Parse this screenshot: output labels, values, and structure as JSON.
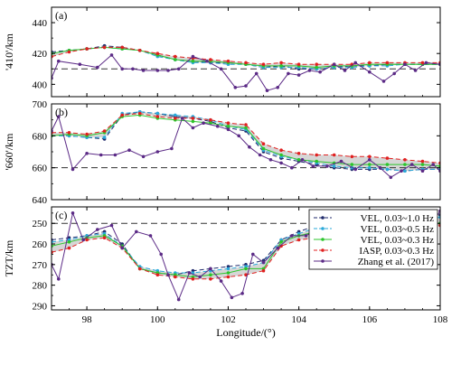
{
  "chart_data": [
    {
      "type": "line",
      "panel_label": "(a)",
      "ylabel": "'410'/km",
      "ylim": [
        450,
        392
      ],
      "yticks": [
        400,
        420,
        440
      ],
      "reference_line": 410,
      "band_between": [
        "IASP, 0.03~0.3 Hz",
        "VEL, 0.03~0.5 Hz"
      ],
      "series": [
        {
          "name": "VEL, 0.03~1.0 Hz",
          "x": [
            97.0,
            97.5,
            98.0,
            98.5,
            99.0,
            99.5,
            100.0,
            100.5,
            101.0,
            101.5,
            102.0,
            102.5,
            103.0,
            103.5,
            104.0,
            104.5,
            105.0,
            105.5,
            106.0,
            106.5,
            107.0,
            107.5,
            108.0
          ],
          "y": [
            421,
            422,
            423,
            425,
            424,
            422,
            419,
            416,
            415,
            414,
            414,
            413,
            411,
            412,
            410,
            410,
            411,
            412,
            412,
            413,
            413,
            413,
            413
          ]
        },
        {
          "name": "VEL, 0.03~0.5 Hz",
          "x": [
            97.0,
            97.5,
            98.0,
            98.5,
            99.0,
            99.5,
            100.0,
            100.5,
            101.0,
            101.5,
            102.0,
            102.5,
            103.0,
            103.5,
            104.0,
            104.5,
            105.0,
            105.5,
            106.0,
            106.5,
            107.0,
            107.5,
            108.0
          ],
          "y": [
            420,
            422,
            423,
            424,
            423,
            422,
            418,
            416,
            414,
            414,
            413,
            413,
            411,
            411,
            411,
            410,
            411,
            411,
            412,
            412,
            413,
            413,
            413
          ]
        },
        {
          "name": "VEL, 0.03~0.3 Hz",
          "x": [
            97.0,
            97.5,
            98.0,
            98.5,
            99.0,
            99.5,
            100.0,
            100.5,
            101.0,
            101.5,
            102.0,
            102.5,
            103.0,
            103.5,
            104.0,
            104.5,
            105.0,
            105.5,
            106.0,
            106.5,
            107.0,
            107.5,
            108.0
          ],
          "y": [
            420,
            422,
            423,
            424,
            423,
            422,
            419,
            416,
            415,
            415,
            414,
            413,
            412,
            412,
            412,
            411,
            412,
            412,
            413,
            413,
            413,
            413,
            413
          ]
        },
        {
          "name": "IASP, 0.03~0.3 Hz",
          "x": [
            97.0,
            97.5,
            98.0,
            98.5,
            99.0,
            99.5,
            100.0,
            100.5,
            101.0,
            101.5,
            102.0,
            102.5,
            103.0,
            103.5,
            104.0,
            104.5,
            105.0,
            105.5,
            106.0,
            106.5,
            107.0,
            107.5,
            108.0
          ],
          "y": [
            418,
            421,
            423,
            424,
            424,
            422,
            420,
            418,
            417,
            416,
            415,
            414,
            413,
            414,
            413,
            413,
            413,
            413,
            414,
            414,
            414,
            414,
            414
          ]
        },
        {
          "name": "Zhang et al. (2017)",
          "x": [
            97.0,
            97.2,
            97.8,
            98.3,
            98.7,
            99.0,
            99.3,
            99.6,
            100.0,
            100.3,
            100.6,
            101.0,
            101.4,
            101.8,
            102.2,
            102.5,
            102.8,
            103.1,
            103.4,
            103.7,
            104.0,
            104.3,
            104.6,
            105.0,
            105.3,
            105.6,
            106.0,
            106.4,
            106.7,
            107.0,
            107.3,
            107.6,
            108.0
          ],
          "y": [
            404,
            415,
            413,
            411,
            419,
            410,
            410,
            409,
            409,
            409,
            410,
            418,
            415,
            410,
            398,
            399,
            407,
            396,
            398,
            407,
            406,
            409,
            408,
            413,
            409,
            414,
            408,
            402,
            407,
            413,
            409,
            414,
            413
          ]
        }
      ]
    },
    {
      "type": "line",
      "panel_label": "(b)",
      "ylabel": "'660'/km",
      "ylim": [
        700,
        640
      ],
      "yticks": [
        640,
        660,
        680,
        700
      ],
      "reference_line": 660,
      "band_between": [
        "IASP, 0.03~0.3 Hz",
        "VEL, 0.03~0.5 Hz"
      ],
      "series": [
        {
          "name": "VEL, 0.03~1.0 Hz",
          "x": [
            97.0,
            97.5,
            98.0,
            98.5,
            99.0,
            99.5,
            100.0,
            100.5,
            101.0,
            101.5,
            102.0,
            102.5,
            103.0,
            103.5,
            104.0,
            104.5,
            105.0,
            105.5,
            106.0,
            106.5,
            107.0,
            107.5,
            108.0
          ],
          "y": [
            680,
            680,
            679,
            678,
            693,
            695,
            694,
            692,
            691,
            689,
            685,
            683,
            670,
            666,
            664,
            662,
            660,
            659,
            659,
            659,
            658,
            659,
            659
          ]
        },
        {
          "name": "VEL, 0.03~0.5 Hz",
          "x": [
            97.0,
            97.5,
            98.0,
            98.5,
            99.0,
            99.5,
            100.0,
            100.5,
            101.0,
            101.5,
            102.0,
            102.5,
            103.0,
            103.5,
            104.0,
            104.5,
            105.0,
            105.5,
            106.0,
            106.5,
            107.0,
            107.5,
            108.0
          ],
          "y": [
            680,
            680,
            679,
            679,
            694,
            695,
            694,
            693,
            692,
            690,
            686,
            684,
            671,
            667,
            665,
            663,
            661,
            660,
            660,
            659,
            658,
            659,
            659
          ]
        },
        {
          "name": "VEL, 0.03~0.3 Hz",
          "x": [
            97.0,
            97.5,
            98.0,
            98.5,
            99.0,
            99.5,
            100.0,
            100.5,
            101.0,
            101.5,
            102.0,
            102.5,
            103.0,
            103.5,
            104.0,
            104.5,
            105.0,
            105.5,
            106.0,
            106.5,
            107.0,
            107.5,
            108.0
          ],
          "y": [
            680,
            681,
            680,
            682,
            692,
            693,
            691,
            690,
            689,
            688,
            686,
            685,
            672,
            668,
            665,
            664,
            663,
            662,
            662,
            662,
            662,
            662,
            661
          ]
        },
        {
          "name": "IASP, 0.03~0.3 Hz",
          "x": [
            97.0,
            97.5,
            98.0,
            98.5,
            99.0,
            99.5,
            100.0,
            100.5,
            101.0,
            101.5,
            102.0,
            102.5,
            103.0,
            103.5,
            104.0,
            104.5,
            105.0,
            105.5,
            106.0,
            106.5,
            107.0,
            107.5,
            108.0
          ],
          "y": [
            682,
            682,
            681,
            683,
            693,
            694,
            692,
            691,
            691,
            690,
            688,
            687,
            675,
            671,
            669,
            668,
            668,
            667,
            667,
            666,
            665,
            664,
            663
          ]
        },
        {
          "name": "Zhang et al. (2017)",
          "x": [
            97.0,
            97.2,
            97.6,
            98.0,
            98.4,
            98.8,
            99.2,
            99.6,
            100.0,
            100.4,
            100.7,
            101.0,
            101.3,
            101.7,
            102.0,
            102.3,
            102.6,
            102.9,
            103.2,
            103.5,
            103.8,
            104.1,
            104.4,
            104.8,
            105.2,
            105.6,
            106.0,
            106.3,
            106.6,
            106.9,
            107.2,
            107.5,
            107.8,
            108.0
          ],
          "y": [
            683,
            692,
            659,
            669,
            668,
            668,
            671,
            667,
            670,
            672,
            691,
            685,
            688,
            686,
            684,
            680,
            673,
            668,
            665,
            663,
            660,
            665,
            661,
            661,
            664,
            659,
            665,
            660,
            654,
            658,
            662,
            658,
            662,
            658
          ]
        }
      ]
    },
    {
      "type": "line",
      "panel_label": "(c)",
      "ylabel": "TZT/km",
      "ylim": [
        242,
        292
      ],
      "yticks": [
        250,
        260,
        270,
        280,
        290
      ],
      "reference_line": 250,
      "band_between": [
        "IASP, 0.03~0.3 Hz",
        "VEL, 0.03~0.5 Hz"
      ],
      "xlabel": "Longitude/(°)",
      "xlim": [
        97,
        108
      ],
      "xticks": [
        98,
        100,
        102,
        104,
        106,
        108
      ],
      "series": [
        {
          "name": "VEL, 0.03~1.0 Hz",
          "x": [
            97.0,
            97.5,
            98.0,
            98.5,
            99.0,
            99.5,
            100.0,
            100.5,
            101.0,
            101.5,
            102.0,
            102.5,
            103.0,
            103.5,
            104.0,
            104.5,
            105.0,
            105.5,
            106.0,
            106.5,
            107.0,
            107.5,
            108.0
          ],
          "y": [
            258,
            257,
            256,
            254,
            260,
            272,
            274,
            275,
            273,
            272,
            271,
            270,
            268,
            258,
            254,
            251,
            250,
            249,
            248,
            248,
            247,
            247,
            246
          ]
        },
        {
          "name": "VEL, 0.03~0.5 Hz",
          "x": [
            97.0,
            97.5,
            98.0,
            98.5,
            99.0,
            99.5,
            100.0,
            100.5,
            101.0,
            101.5,
            102.0,
            102.5,
            103.0,
            103.5,
            104.0,
            104.5,
            105.0,
            105.5,
            106.0,
            106.5,
            107.0,
            107.5,
            108.0
          ],
          "y": [
            259,
            258,
            256,
            255,
            261,
            271,
            273,
            274,
            274,
            273,
            272,
            271,
            269,
            258,
            255,
            252,
            251,
            250,
            249,
            249,
            248,
            248,
            247
          ]
        },
        {
          "name": "VEL, 0.03~0.3 Hz",
          "x": [
            97.0,
            97.5,
            98.0,
            98.5,
            99.0,
            99.5,
            100.0,
            100.5,
            101.0,
            101.5,
            102.0,
            102.5,
            103.0,
            103.5,
            104.0,
            104.5,
            105.0,
            105.5,
            106.0,
            106.5,
            107.0,
            107.5,
            108.0
          ],
          "y": [
            261,
            259,
            257,
            256,
            261,
            272,
            274,
            275,
            276,
            275,
            274,
            272,
            272,
            259,
            256,
            254,
            253,
            252,
            251,
            251,
            250,
            250,
            250
          ]
        },
        {
          "name": "IASP, 0.03~0.3 Hz",
          "x": [
            97.0,
            97.5,
            98.0,
            98.5,
            99.0,
            99.5,
            100.0,
            100.5,
            101.0,
            101.5,
            102.0,
            102.5,
            103.0,
            103.5,
            104.0,
            104.5,
            105.0,
            105.5,
            106.0,
            106.5,
            107.0,
            107.5,
            108.0
          ],
          "y": [
            264,
            262,
            258,
            257,
            262,
            272,
            275,
            276,
            277,
            277,
            276,
            275,
            273,
            261,
            258,
            257,
            257,
            256,
            256,
            255,
            254,
            253,
            251
          ]
        },
        {
          "name": "Zhang et al. (2017)",
          "x": [
            97.0,
            97.2,
            97.6,
            97.9,
            98.3,
            98.7,
            99.0,
            99.4,
            99.8,
            100.1,
            100.3,
            100.6,
            100.9,
            101.2,
            101.5,
            101.8,
            102.1,
            102.4,
            102.7,
            103.0,
            103.4,
            103.8,
            104.2,
            104.6,
            105.0,
            105.4,
            105.8,
            106.2,
            106.5,
            106.8,
            107.2,
            107.5,
            107.8,
            108.0
          ],
          "y": [
            270,
            277,
            245,
            258,
            253,
            251,
            262,
            254,
            256,
            265,
            275,
            287,
            274,
            276,
            272,
            278,
            286,
            284,
            265,
            269,
            262,
            256,
            256,
            252,
            249,
            248,
            246,
            244,
            249,
            252,
            246,
            260,
            249,
            244
          ]
        }
      ]
    }
  ]
}
